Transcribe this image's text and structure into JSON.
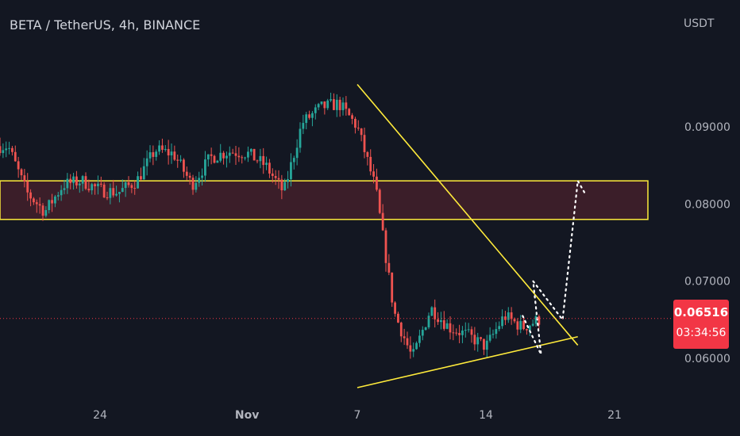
{
  "header": {
    "symbol_title": "BETA / TetherUS, 4h, BINANCE"
  },
  "price_scale": {
    "currency": "USDT",
    "last_price": "0.06516",
    "countdown": "03:34:56",
    "last_price_color": "#f23645"
  },
  "chart_data": {
    "type": "candlestick",
    "xlabel": "",
    "ylabel": "",
    "y_ticks": [
      "0.09000",
      "0.08000",
      "0.07000",
      "0.06000"
    ],
    "x_ticks": [
      "24",
      "Nov",
      "7",
      "14",
      "21"
    ],
    "ylim": [
      0.055,
      0.1
    ],
    "last_price": 0.06516,
    "colors": {
      "up": "#26a69a",
      "down": "#ef5350",
      "background": "#131722",
      "zone": "#ffeb3b",
      "trendline": "#ffeb3b",
      "projection": "#ffffff"
    },
    "zone": {
      "low": 0.078,
      "high": 0.083,
      "fill": "#3d1f2a"
    },
    "trendlines": [
      {
        "name": "descending-resistance",
        "from": [
          "Nov 7",
          0.0955
        ],
        "to": [
          "Nov 19",
          0.0617
        ]
      },
      {
        "name": "ascending-support",
        "from": [
          "Nov 7",
          0.0562
        ],
        "to": [
          "Nov 19",
          0.0628
        ]
      }
    ],
    "projection_path": [
      [
        "Nov 16",
        0.0655
      ],
      [
        "Nov 17",
        0.0605
      ],
      [
        "Nov 17",
        0.07
      ],
      [
        "Nov 18",
        0.065
      ],
      [
        "Nov 19",
        0.083
      ],
      [
        "Nov 19",
        0.0812
      ]
    ],
    "candles_sampled": [
      {
        "date": "Oct 19",
        "close": 0.0875
      },
      {
        "date": "Oct 20",
        "close": 0.0815
      },
      {
        "date": "Oct 21",
        "close": 0.079
      },
      {
        "date": "Oct 22",
        "close": 0.0825
      },
      {
        "date": "Oct 23",
        "close": 0.083
      },
      {
        "date": "Oct 24",
        "close": 0.0818
      },
      {
        "date": "Oct 25",
        "close": 0.0815
      },
      {
        "date": "Oct 26",
        "close": 0.083
      },
      {
        "date": "Oct 27",
        "close": 0.087
      },
      {
        "date": "Oct 28",
        "close": 0.0865
      },
      {
        "date": "Oct 29",
        "close": 0.0825
      },
      {
        "date": "Oct 30",
        "close": 0.086
      },
      {
        "date": "Oct 31",
        "close": 0.0868
      },
      {
        "date": "Nov 1",
        "close": 0.0866
      },
      {
        "date": "Nov 2",
        "close": 0.085
      },
      {
        "date": "Nov 3",
        "close": 0.0815
      },
      {
        "date": "Nov 4",
        "close": 0.0905
      },
      {
        "date": "Nov 5",
        "close": 0.0925
      },
      {
        "date": "Nov 6",
        "close": 0.093
      },
      {
        "date": "Nov 7",
        "close": 0.09
      },
      {
        "date": "Nov 8",
        "close": 0.082
      },
      {
        "date": "Nov 9",
        "close": 0.066
      },
      {
        "date": "Nov 10",
        "close": 0.06
      },
      {
        "date": "Nov 11",
        "close": 0.0665
      },
      {
        "date": "Nov 12",
        "close": 0.064
      },
      {
        "date": "Nov 13",
        "close": 0.063
      },
      {
        "date": "Nov 14",
        "close": 0.0615
      },
      {
        "date": "Nov 15",
        "close": 0.0655
      },
      {
        "date": "Nov 16",
        "close": 0.064
      },
      {
        "date": "Nov 17",
        "close": 0.06516
      }
    ]
  }
}
